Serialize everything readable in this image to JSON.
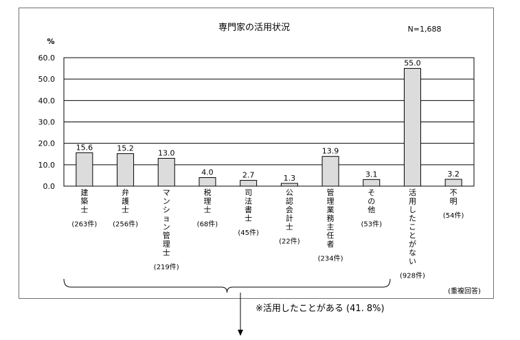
{
  "chart_data": {
    "type": "bar",
    "title": "専門家の活用状況",
    "n_label": "N=1,688",
    "ylabel": "%",
    "ylim": [
      0,
      60
    ],
    "yticks": [
      "0.0",
      "10.0",
      "20.0",
      "30.0",
      "40.0",
      "50.0",
      "60.0"
    ],
    "grid": true,
    "categories": [
      "建築士",
      "弁護士",
      "マンション管理士",
      "税理士",
      "司法書士",
      "公認会計士",
      "管理業務主任者",
      "その他",
      "活用したことがない",
      "不明"
    ],
    "counts": [
      "(263件)",
      "(256件)",
      "(219件)",
      "(68件)",
      "(45件)",
      "(22件)",
      "(234件)",
      "(53件)",
      "(928件)",
      "(54件)"
    ],
    "values": [
      15.6,
      15.2,
      13.0,
      4.0,
      2.7,
      1.3,
      13.9,
      3.1,
      55.0,
      3.2
    ],
    "value_labels": [
      "15.6",
      "15.2",
      "13.0",
      "4.0",
      "2.7",
      "1.3",
      "13.9",
      "3.1",
      "55.0",
      "3.2"
    ],
    "bar_color": "#dcdcdc",
    "note": "(重複回答)",
    "bracket_label": "※活用したことがある (41. 8%)"
  }
}
